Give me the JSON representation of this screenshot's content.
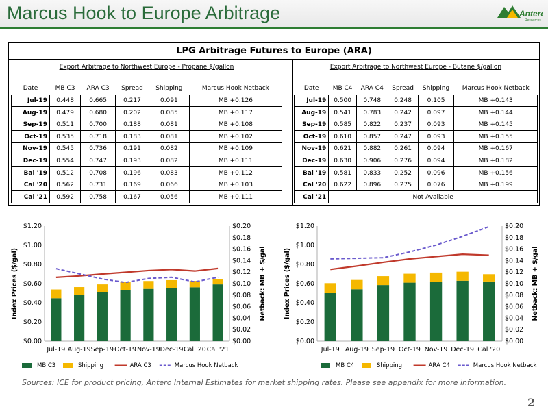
{
  "page": {
    "title": "Marcus Hook to Europe Arbitrage",
    "logo_text": "Antero",
    "logo_subtext": "Resources",
    "source_note": "Sources: ICE for product pricing, Antero Internal Estimates for market shipping rates. Please see appendix for more information.",
    "page_number": "2"
  },
  "table": {
    "title": "LPG Arbitrage Futures to Europe (ARA)",
    "propane": {
      "caption": "Export Arbitrage to Northwest Europe - Propane $/gallon",
      "columns": [
        "Date",
        "MB C3",
        "ARA C3",
        "Spread",
        "Shipping",
        "Marcus Hook Netback"
      ],
      "rows": [
        [
          "Jul-19",
          "0.448",
          "0.665",
          "0.217",
          "0.091",
          "MB +0.126"
        ],
        [
          "Aug-19",
          "0.479",
          "0.680",
          "0.202",
          "0.085",
          "MB +0.117"
        ],
        [
          "Sep-19",
          "0.511",
          "0.700",
          "0.188",
          "0.081",
          "MB +0.108"
        ],
        [
          "Oct-19",
          "0.535",
          "0.718",
          "0.183",
          "0.081",
          "MB +0.102"
        ],
        [
          "Nov-19",
          "0.545",
          "0.736",
          "0.191",
          "0.082",
          "MB +0.109"
        ],
        [
          "Dec-19",
          "0.554",
          "0.747",
          "0.193",
          "0.082",
          "MB +0.111"
        ],
        [
          "Bal '19",
          "0.512",
          "0.708",
          "0.196",
          "0.083",
          "MB +0.112"
        ],
        [
          "Cal '20",
          "0.562",
          "0.731",
          "0.169",
          "0.066",
          "MB +0.103"
        ],
        [
          "Cal '21",
          "0.592",
          "0.758",
          "0.167",
          "0.056",
          "MB +0.111"
        ]
      ]
    },
    "butane": {
      "caption": "Export Arbitrage to Northwest Europe - Butane $/gallon",
      "columns": [
        "Date",
        "MB C4",
        "ARA C4",
        "Spread",
        "Shipping",
        "Marcus Hook Netback"
      ],
      "rows": [
        [
          "Jul-19",
          "0.500",
          "0.748",
          "0.248",
          "0.105",
          "MB +0.143"
        ],
        [
          "Aug-19",
          "0.541",
          "0.783",
          "0.242",
          "0.097",
          "MB +0.144"
        ],
        [
          "Sep-19",
          "0.585",
          "0.822",
          "0.237",
          "0.093",
          "MB +0.145"
        ],
        [
          "Oct-19",
          "0.610",
          "0.857",
          "0.247",
          "0.093",
          "MB +0.155"
        ],
        [
          "Nov-19",
          "0.621",
          "0.882",
          "0.261",
          "0.094",
          "MB +0.167"
        ],
        [
          "Dec-19",
          "0.630",
          "0.906",
          "0.276",
          "0.094",
          "MB +0.182"
        ],
        [
          "Bal '19",
          "0.581",
          "0.833",
          "0.252",
          "0.096",
          "MB +0.156"
        ],
        [
          "Cal '20",
          "0.622",
          "0.896",
          "0.275",
          "0.076",
          "MB +0.199"
        ]
      ],
      "last_row_date": "Cal '21",
      "last_row_note": "Not Available"
    }
  },
  "colors": {
    "title_green": "#2a6b3a",
    "bar_green": "#1b6b3a",
    "shipping_gold": "#f5b800",
    "ara_red": "#c0392b",
    "netback_purple": "#6a5acd"
  },
  "chart_data": [
    {
      "type": "bar",
      "stacked": true,
      "categories": [
        "Jul-19",
        "Aug-19",
        "Sep-19",
        "Oct-19",
        "Nov-19",
        "Dec-19",
        "Cal '20",
        "Cal '21"
      ],
      "ylabel": "Index Prices ($/gal)",
      "y2label": "Netback: MB + $/gal",
      "ylim": [
        0,
        1.2
      ],
      "y2lim": [
        0,
        0.2
      ],
      "yticks": [
        "$0.00",
        "$0.20",
        "$0.40",
        "$0.60",
        "$0.80",
        "$1.00",
        "$1.20"
      ],
      "y2ticks": [
        "$0.00",
        "$0.02",
        "$0.04",
        "$0.06",
        "$0.08",
        "$0.10",
        "$0.12",
        "$0.14",
        "$0.16",
        "$0.18",
        "$0.20"
      ],
      "series": [
        {
          "name": "MB C3",
          "kind": "bar",
          "axis": "left",
          "values": [
            0.448,
            0.479,
            0.511,
            0.535,
            0.545,
            0.554,
            0.562,
            0.592
          ]
        },
        {
          "name": "Shipping",
          "kind": "bar",
          "axis": "left",
          "values": [
            0.091,
            0.085,
            0.081,
            0.081,
            0.082,
            0.082,
            0.066,
            0.056
          ]
        },
        {
          "name": "ARA C3",
          "kind": "line",
          "axis": "left",
          "values": [
            0.665,
            0.68,
            0.7,
            0.718,
            0.736,
            0.747,
            0.731,
            0.758
          ]
        },
        {
          "name": "Marcus Hook Netback",
          "kind": "dashed-line",
          "axis": "right",
          "values": [
            0.126,
            0.117,
            0.108,
            0.102,
            0.109,
            0.111,
            0.103,
            0.111
          ]
        }
      ],
      "legend": "bottom"
    },
    {
      "type": "bar",
      "stacked": true,
      "categories": [
        "Jul-19",
        "Aug-19",
        "Sep-19",
        "Oct-19",
        "Nov-19",
        "Dec-19",
        "Cal '20"
      ],
      "ylabel": "Index Prices ($/gal)",
      "y2label": "Netback: MB + $/gal",
      "ylim": [
        0,
        1.2
      ],
      "y2lim": [
        0,
        0.2
      ],
      "yticks": [
        "$0.00",
        "$0.20",
        "$0.40",
        "$0.60",
        "$0.80",
        "$1.00",
        "$1.20"
      ],
      "y2ticks": [
        "$0.00",
        "$0.02",
        "$0.04",
        "$0.06",
        "$0.08",
        "$0.10",
        "$0.12",
        "$0.14",
        "$0.16",
        "$0.18",
        "$0.20"
      ],
      "series": [
        {
          "name": "MB C4",
          "kind": "bar",
          "axis": "left",
          "values": [
            0.5,
            0.541,
            0.585,
            0.61,
            0.621,
            0.63,
            0.622
          ]
        },
        {
          "name": "Shipping",
          "kind": "bar",
          "axis": "left",
          "values": [
            0.105,
            0.097,
            0.093,
            0.093,
            0.094,
            0.094,
            0.076
          ]
        },
        {
          "name": "ARA C4",
          "kind": "line",
          "axis": "left",
          "values": [
            0.748,
            0.783,
            0.822,
            0.857,
            0.882,
            0.906,
            0.896
          ]
        },
        {
          "name": "Marcus Hook Netback",
          "kind": "dashed-line",
          "axis": "right",
          "values": [
            0.143,
            0.144,
            0.145,
            0.155,
            0.167,
            0.182,
            0.199
          ]
        }
      ],
      "legend": "bottom"
    }
  ]
}
